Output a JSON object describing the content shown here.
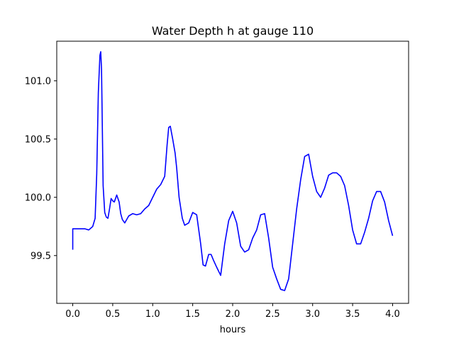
{
  "chart_data": {
    "type": "line",
    "title": "Water Depth h at gauge 110",
    "xlabel": "hours",
    "ylabel": "",
    "xlim": [
      -0.2,
      4.2
    ],
    "ylim": [
      99.09,
      101.34
    ],
    "xticks": [
      0.0,
      0.5,
      1.0,
      1.5,
      2.0,
      2.5,
      3.0,
      3.5,
      4.0
    ],
    "xtick_labels": [
      "0.0",
      "0.5",
      "1.0",
      "1.5",
      "2.0",
      "2.5",
      "3.0",
      "3.5",
      "4.0"
    ],
    "yticks": [
      99.5,
      100.0,
      100.5,
      101.0
    ],
    "ytick_labels": [
      "99.5",
      "100.0",
      "100.5",
      "101.0"
    ],
    "grid": false,
    "series": [
      {
        "color": "#0000ff",
        "x": [
          0.0,
          0.0,
          0.05,
          0.1,
          0.15,
          0.2,
          0.25,
          0.28,
          0.3,
          0.32,
          0.34,
          0.35,
          0.36,
          0.37,
          0.38,
          0.4,
          0.42,
          0.44,
          0.46,
          0.48,
          0.5,
          0.52,
          0.55,
          0.58,
          0.6,
          0.62,
          0.65,
          0.7,
          0.75,
          0.8,
          0.85,
          0.9,
          0.95,
          1.0,
          1.05,
          1.1,
          1.15,
          1.18,
          1.2,
          1.22,
          1.25,
          1.28,
          1.3,
          1.33,
          1.37,
          1.4,
          1.45,
          1.5,
          1.55,
          1.6,
          1.63,
          1.66,
          1.7,
          1.73,
          1.76,
          1.8,
          1.85,
          1.9,
          1.95,
          2.0,
          2.05,
          2.1,
          2.15,
          2.2,
          2.25,
          2.3,
          2.35,
          2.4,
          2.45,
          2.5,
          2.55,
          2.6,
          2.65,
          2.7,
          2.75,
          2.8,
          2.85,
          2.9,
          2.95,
          3.0,
          3.05,
          3.1,
          3.15,
          3.2,
          3.25,
          3.3,
          3.35,
          3.4,
          3.45,
          3.5,
          3.55,
          3.6,
          3.65,
          3.7,
          3.75,
          3.8,
          3.85,
          3.9,
          3.95,
          4.0
        ],
        "y": [
          99.55,
          99.73,
          99.73,
          99.73,
          99.73,
          99.72,
          99.75,
          99.82,
          100.2,
          100.9,
          101.22,
          101.25,
          101.1,
          100.6,
          100.1,
          99.87,
          99.83,
          99.82,
          99.9,
          99.99,
          99.97,
          99.96,
          100.02,
          99.96,
          99.86,
          99.81,
          99.78,
          99.84,
          99.86,
          99.85,
          99.86,
          99.9,
          99.93,
          100.0,
          100.07,
          100.11,
          100.18,
          100.45,
          100.6,
          100.61,
          100.5,
          100.38,
          100.25,
          100.0,
          99.82,
          99.76,
          99.78,
          99.87,
          99.85,
          99.6,
          99.42,
          99.41,
          99.51,
          99.51,
          99.46,
          99.4,
          99.33,
          99.6,
          99.8,
          99.88,
          99.78,
          99.58,
          99.53,
          99.55,
          99.65,
          99.72,
          99.85,
          99.86,
          99.65,
          99.4,
          99.3,
          99.21,
          99.2,
          99.3,
          99.6,
          99.9,
          100.15,
          100.35,
          100.37,
          100.18,
          100.05,
          100.0,
          100.08,
          100.19,
          100.21,
          100.21,
          100.18,
          100.1,
          99.93,
          99.72,
          99.6,
          99.6,
          99.7,
          99.82,
          99.97,
          100.05,
          100.05,
          99.96,
          99.8,
          99.67
        ]
      }
    ]
  }
}
